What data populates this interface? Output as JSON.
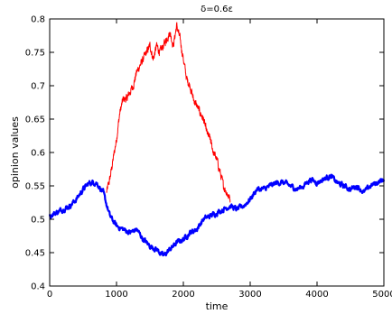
{
  "chart_data": {
    "type": "line",
    "title": "δ=0.6ε",
    "xlabel": "time",
    "ylabel": "opinion values",
    "xlim": [
      0,
      5000
    ],
    "ylim": [
      0.4,
      0.8
    ],
    "xticks": [
      0,
      1000,
      2000,
      3000,
      4000,
      5000
    ],
    "xtick_labels": [
      "0",
      "1000",
      "2000",
      "3000",
      "4000",
      "5000"
    ],
    "yticks": [
      0.4,
      0.45,
      0.5,
      0.55,
      0.6,
      0.65,
      0.7,
      0.75,
      0.8
    ],
    "ytick_labels": [
      "0.4",
      "0.45",
      "0.5",
      "0.55",
      "0.6",
      "0.65",
      "0.7",
      "0.75",
      "0.8"
    ],
    "grid": false,
    "series": [
      {
        "color": "#ff0000",
        "x": [
          850,
          900,
          950,
          1000,
          1050,
          1100,
          1150,
          1200,
          1250,
          1300,
          1350,
          1400,
          1450,
          1500,
          1550,
          1600,
          1650,
          1700,
          1750,
          1800,
          1850,
          1900,
          1950,
          2000,
          2050,
          2100,
          2150,
          2200,
          2250,
          2300,
          2350,
          2400,
          2450,
          2500,
          2550,
          2600,
          2650,
          2700
        ],
        "y": [
          0.54,
          0.56,
          0.59,
          0.62,
          0.66,
          0.68,
          0.68,
          0.69,
          0.7,
          0.72,
          0.73,
          0.74,
          0.75,
          0.76,
          0.74,
          0.76,
          0.75,
          0.76,
          0.77,
          0.78,
          0.76,
          0.79,
          0.77,
          0.74,
          0.71,
          0.7,
          0.68,
          0.67,
          0.66,
          0.65,
          0.63,
          0.62,
          0.6,
          0.59,
          0.57,
          0.55,
          0.54,
          0.53
        ]
      },
      {
        "color": "#0000ff",
        "x": [
          0,
          100,
          200,
          300,
          400,
          500,
          600,
          700,
          800,
          900,
          1000,
          1100,
          1200,
          1300,
          1400,
          1500,
          1600,
          1700,
          1800,
          1900,
          2000,
          2100,
          2200,
          2300,
          2400,
          2500,
          2600,
          2700,
          2800,
          2900,
          3000,
          3100,
          3200,
          3300,
          3400,
          3500,
          3600,
          3700,
          3800,
          3900,
          4000,
          4100,
          4200,
          4300,
          4400,
          4500,
          4600,
          4700,
          4800,
          4900,
          5000
        ],
        "y": [
          0.505,
          0.51,
          0.515,
          0.52,
          0.53,
          0.545,
          0.555,
          0.555,
          0.54,
          0.505,
          0.49,
          0.485,
          0.48,
          0.485,
          0.47,
          0.46,
          0.455,
          0.445,
          0.455,
          0.465,
          0.47,
          0.48,
          0.485,
          0.5,
          0.505,
          0.51,
          0.515,
          0.52,
          0.515,
          0.52,
          0.53,
          0.545,
          0.545,
          0.55,
          0.555,
          0.555,
          0.55,
          0.545,
          0.55,
          0.56,
          0.555,
          0.56,
          0.565,
          0.555,
          0.55,
          0.545,
          0.55,
          0.54,
          0.55,
          0.555,
          0.56
        ]
      }
    ]
  }
}
